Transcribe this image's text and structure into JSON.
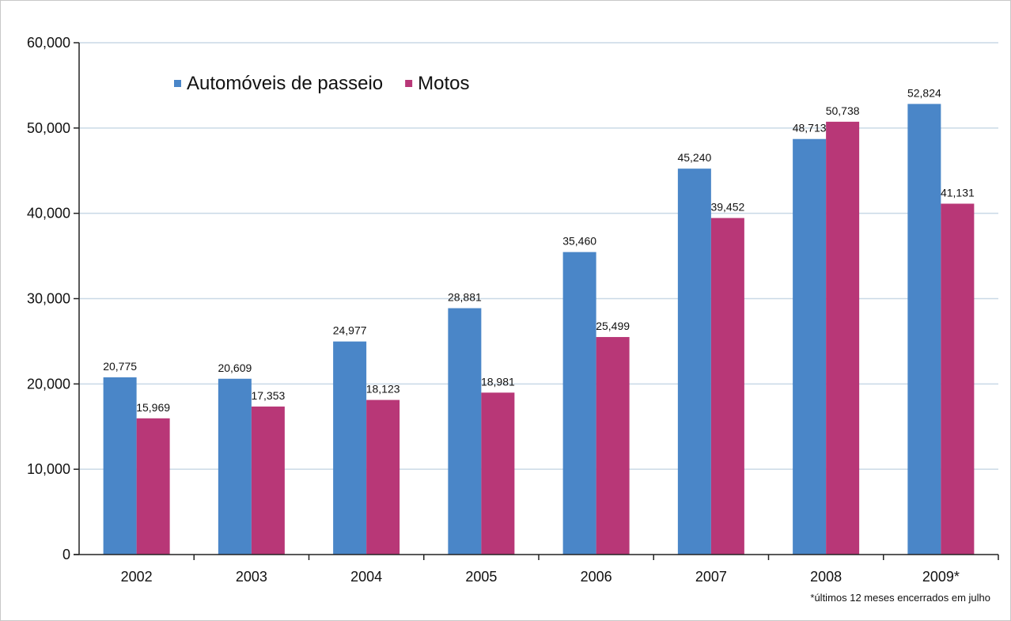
{
  "chart_data": {
    "type": "bar",
    "categories": [
      "2002",
      "2003",
      "2004",
      "2005",
      "2006",
      "2007",
      "2008",
      "2009*"
    ],
    "series": [
      {
        "name": "Automóveis de passeio",
        "color": "#4a86c8",
        "values": [
          20775,
          20609,
          24977,
          28881,
          35460,
          45240,
          48713,
          52824
        ],
        "labels": [
          "20,775",
          "20,609",
          "24,977",
          "28,881",
          "35,460",
          "45,240",
          "48,713",
          "52,824"
        ]
      },
      {
        "name": "Motos",
        "color": "#b83777",
        "values": [
          15969,
          17353,
          18123,
          18981,
          25499,
          39452,
          50738,
          41131
        ],
        "labels": [
          "15,969",
          "17,353",
          "18,123",
          "18,981",
          "25,499",
          "39,452",
          "50,738",
          "41,131"
        ]
      }
    ],
    "ylim": [
      0,
      60000
    ],
    "yticks": [
      0,
      10000,
      20000,
      30000,
      40000,
      50000,
      60000
    ],
    "ytick_labels": [
      "0",
      "10,000",
      "20,000",
      "30,000",
      "40,000",
      "50,000",
      "60,000"
    ],
    "grid": true,
    "legend": "top-left",
    "footnote": "*últimos 12 meses encerrados em julho"
  }
}
